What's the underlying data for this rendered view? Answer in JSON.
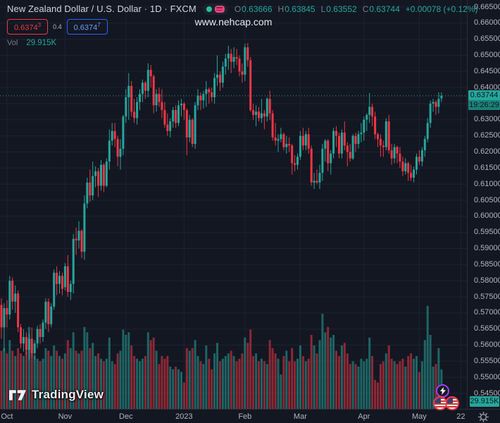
{
  "header": {
    "symbol_title": "New Zealand Dollar / U.S. Dollar · 1D · FXCM",
    "ohlc": {
      "o_label": "O",
      "o": "0.63666",
      "h_label": "H",
      "h": "0.63845",
      "l_label": "L",
      "l": "0.63552",
      "c_label": "C",
      "c": "0.63744",
      "change": "+0.00078 (+0.12%)"
    },
    "quote": {
      "bid": "0.6374",
      "bid_sup": "3",
      "spread": "0.4",
      "ask": "0.6374",
      "ask_sup": "7"
    },
    "vol_label": "Vol",
    "vol_value": "29.915K"
  },
  "watermark": "www.nehcap.com",
  "logo_text": "TradingView",
  "price_axis": {
    "last_price_label": "0.63744",
    "countdown": "19:26:29",
    "volume_label": "29.915K"
  },
  "colors": {
    "background": "#131722",
    "grid": "#1d2231",
    "axis_border": "#2a2e39",
    "axis_text": "#b2b5be",
    "text_primary": "#d1d4dc",
    "text_secondary": "#787b86",
    "up": "#26a69a",
    "down": "#f23645",
    "volume_up": "rgba(38,166,154,0.55)",
    "volume_down": "rgba(242,54,69,0.55)",
    "bid_color": "#f23645",
    "ask_border": "#2962ff",
    "ask_text": "#6b9dff",
    "label_text_dark": "#0c1722",
    "watermark_text": "#e8eaef",
    "status_dot_green": "#2bbd9d",
    "toggle_pink": "#f0457d",
    "bolt_ring": "#a03df0",
    "logo_white": "#eceff4"
  },
  "chart_data": {
    "type": "candlestick",
    "title": "New Zealand Dollar / U.S. Dollar · 1D · FXCM",
    "subtitle_watermark": "www.nehcap.com",
    "ylim": [
      0.545,
      0.665
    ],
    "y_tick_step": 0.005,
    "grid": true,
    "legend_position": "top-left",
    "y_tick_labels": [
      "0.66500",
      "0.66000",
      "0.65500",
      "0.65000",
      "0.64500",
      "0.64000",
      "0.63000",
      "0.62500",
      "0.62000",
      "0.61500",
      "0.61000",
      "0.60500",
      "0.60000",
      "0.59500",
      "0.59000",
      "0.58500",
      "0.58000",
      "0.57500",
      "0.57000",
      "0.56500",
      "0.56000",
      "0.55500",
      "0.55000",
      "0.54500"
    ],
    "x_tick_labels": [
      {
        "label": "Oct",
        "bar_index": 2
      },
      {
        "label": "Nov",
        "bar_index": 23
      },
      {
        "label": "Dec",
        "bar_index": 45
      },
      {
        "label": "2023",
        "bar_index": 66
      },
      {
        "label": "Feb",
        "bar_index": 88
      },
      {
        "label": "Mar",
        "bar_index": 108
      },
      {
        "label": "Apr",
        "bar_index": 131
      },
      {
        "label": "May",
        "bar_index": 151
      },
      {
        "label": "22",
        "bar_index": 166
      }
    ],
    "last_price": 0.63744,
    "countdown": "19:26:29",
    "last_volume_k": 29.915,
    "volume_axis_max_k": 80,
    "volume_unit": "K (thousands of contracts)",
    "candles_ohlcv_note": "daily bars Oct 2022 - May 11 2023, [open, high, low, close, volumeK], values read/estimated from chart",
    "candles_ohlcv": [
      [
        0.5725,
        0.5745,
        0.562,
        0.5655,
        44
      ],
      [
        0.5655,
        0.573,
        0.558,
        0.5715,
        46
      ],
      [
        0.5715,
        0.574,
        0.5655,
        0.5695,
        42
      ],
      [
        0.5695,
        0.5815,
        0.568,
        0.58,
        52
      ],
      [
        0.58,
        0.581,
        0.571,
        0.5735,
        44
      ],
      [
        0.5735,
        0.5785,
        0.57,
        0.576,
        40
      ],
      [
        0.576,
        0.577,
        0.564,
        0.5655,
        46
      ],
      [
        0.5655,
        0.5665,
        0.559,
        0.5605,
        42
      ],
      [
        0.5605,
        0.565,
        0.558,
        0.5625,
        40
      ],
      [
        0.5625,
        0.564,
        0.557,
        0.5585,
        44
      ],
      [
        0.5585,
        0.5635,
        0.5555,
        0.562,
        62
      ],
      [
        0.562,
        0.5655,
        0.556,
        0.5575,
        50
      ],
      [
        0.5575,
        0.5615,
        0.5555,
        0.5605,
        40
      ],
      [
        0.5605,
        0.566,
        0.559,
        0.565,
        38
      ],
      [
        0.565,
        0.5665,
        0.5605,
        0.5625,
        36
      ],
      [
        0.5625,
        0.568,
        0.561,
        0.567,
        38
      ],
      [
        0.567,
        0.5745,
        0.565,
        0.5735,
        46
      ],
      [
        0.5735,
        0.5745,
        0.564,
        0.5665,
        44
      ],
      [
        0.5665,
        0.573,
        0.5655,
        0.572,
        40
      ],
      [
        0.572,
        0.5835,
        0.571,
        0.5825,
        48
      ],
      [
        0.5825,
        0.5845,
        0.5755,
        0.579,
        44
      ],
      [
        0.579,
        0.583,
        0.576,
        0.5815,
        40
      ],
      [
        0.5815,
        0.5825,
        0.5755,
        0.5775,
        38
      ],
      [
        0.578,
        0.5855,
        0.577,
        0.5845,
        42
      ],
      [
        0.5845,
        0.588,
        0.575,
        0.5765,
        52
      ],
      [
        0.5765,
        0.58,
        0.574,
        0.579,
        46
      ],
      [
        0.579,
        0.5945,
        0.576,
        0.593,
        58
      ],
      [
        0.593,
        0.5965,
        0.588,
        0.5925,
        44
      ],
      [
        0.5925,
        0.5985,
        0.59,
        0.5955,
        42
      ],
      [
        0.5955,
        0.596,
        0.587,
        0.589,
        44
      ],
      [
        0.589,
        0.6065,
        0.5865,
        0.604,
        62
      ],
      [
        0.604,
        0.612,
        0.6025,
        0.6105,
        58
      ],
      [
        0.6105,
        0.6145,
        0.6045,
        0.6065,
        46
      ],
      [
        0.6065,
        0.617,
        0.605,
        0.6125,
        50
      ],
      [
        0.6125,
        0.6155,
        0.609,
        0.614,
        40
      ],
      [
        0.614,
        0.615,
        0.606,
        0.6095,
        42
      ],
      [
        0.6095,
        0.6175,
        0.608,
        0.616,
        38
      ],
      [
        0.616,
        0.6165,
        0.6075,
        0.6095,
        36
      ],
      [
        0.6095,
        0.618,
        0.609,
        0.617,
        38
      ],
      [
        0.617,
        0.627,
        0.6145,
        0.6235,
        54
      ],
      [
        0.6235,
        0.629,
        0.622,
        0.6265,
        36
      ],
      [
        0.6265,
        0.629,
        0.6215,
        0.624,
        34
      ],
      [
        0.624,
        0.625,
        0.6155,
        0.6185,
        42
      ],
      [
        0.6185,
        0.624,
        0.6145,
        0.621,
        44
      ],
      [
        0.621,
        0.6315,
        0.619,
        0.631,
        60
      ],
      [
        0.631,
        0.6395,
        0.629,
        0.637,
        56
      ],
      [
        0.637,
        0.6445,
        0.63,
        0.6405,
        58
      ],
      [
        0.6405,
        0.642,
        0.631,
        0.6325,
        48
      ],
      [
        0.6325,
        0.6365,
        0.629,
        0.6305,
        40
      ],
      [
        0.6305,
        0.637,
        0.6285,
        0.6355,
        38
      ],
      [
        0.6355,
        0.6395,
        0.633,
        0.638,
        36
      ],
      [
        0.638,
        0.6425,
        0.6355,
        0.6415,
        38
      ],
      [
        0.6415,
        0.642,
        0.6365,
        0.639,
        40
      ],
      [
        0.639,
        0.6475,
        0.637,
        0.6455,
        58
      ],
      [
        0.6455,
        0.647,
        0.64,
        0.6435,
        52
      ],
      [
        0.6435,
        0.644,
        0.632,
        0.6345,
        54
      ],
      [
        0.6345,
        0.6395,
        0.6325,
        0.638,
        44
      ],
      [
        0.638,
        0.64,
        0.634,
        0.6355,
        34
      ],
      [
        0.6355,
        0.6395,
        0.6305,
        0.633,
        40
      ],
      [
        0.633,
        0.6355,
        0.6275,
        0.6285,
        38
      ],
      [
        0.6285,
        0.632,
        0.625,
        0.6265,
        40
      ],
      [
        0.6265,
        0.6305,
        0.6245,
        0.6295,
        32
      ],
      [
        0.6295,
        0.634,
        0.6275,
        0.633,
        30
      ],
      [
        0.633,
        0.6345,
        0.6275,
        0.629,
        32
      ],
      [
        0.629,
        0.636,
        0.628,
        0.6345,
        30
      ],
      [
        0.6345,
        0.6365,
        0.631,
        0.635,
        28
      ],
      [
        0.635,
        0.6355,
        0.63,
        0.633,
        20
      ],
      [
        0.633,
        0.6335,
        0.619,
        0.6245,
        46
      ],
      [
        0.6245,
        0.6315,
        0.623,
        0.63,
        44
      ],
      [
        0.63,
        0.6305,
        0.6215,
        0.6225,
        46
      ],
      [
        0.6225,
        0.6355,
        0.621,
        0.6345,
        52
      ],
      [
        0.6345,
        0.6395,
        0.633,
        0.6375,
        40
      ],
      [
        0.6375,
        0.6385,
        0.633,
        0.636,
        36
      ],
      [
        0.636,
        0.639,
        0.6335,
        0.638,
        34
      ],
      [
        0.638,
        0.642,
        0.634,
        0.6395,
        48
      ],
      [
        0.6395,
        0.64,
        0.635,
        0.6385,
        38
      ],
      [
        0.6385,
        0.64,
        0.6355,
        0.637,
        30
      ],
      [
        0.637,
        0.6445,
        0.635,
        0.643,
        42
      ],
      [
        0.643,
        0.65,
        0.6405,
        0.644,
        50
      ],
      [
        0.644,
        0.645,
        0.639,
        0.6415,
        36
      ],
      [
        0.6415,
        0.648,
        0.64,
        0.6465,
        38
      ],
      [
        0.6465,
        0.6505,
        0.644,
        0.649,
        40
      ],
      [
        0.649,
        0.653,
        0.6455,
        0.6505,
        42
      ],
      [
        0.6505,
        0.652,
        0.6445,
        0.648,
        44
      ],
      [
        0.648,
        0.6525,
        0.646,
        0.6495,
        40
      ],
      [
        0.6495,
        0.652,
        0.647,
        0.649,
        36
      ],
      [
        0.649,
        0.65,
        0.6435,
        0.645,
        38
      ],
      [
        0.645,
        0.6475,
        0.6415,
        0.644,
        42
      ],
      [
        0.644,
        0.6536,
        0.642,
        0.6525,
        54
      ],
      [
        0.6525,
        0.6538,
        0.6465,
        0.6485,
        50
      ],
      [
        0.6485,
        0.6495,
        0.6325,
        0.633,
        60
      ],
      [
        0.633,
        0.635,
        0.63,
        0.6315,
        40
      ],
      [
        0.6315,
        0.6345,
        0.628,
        0.6325,
        42
      ],
      [
        0.6325,
        0.634,
        0.6295,
        0.6305,
        36
      ],
      [
        0.6305,
        0.6365,
        0.629,
        0.632,
        38
      ],
      [
        0.632,
        0.633,
        0.627,
        0.631,
        36
      ],
      [
        0.631,
        0.637,
        0.6295,
        0.6365,
        34
      ],
      [
        0.6365,
        0.639,
        0.63,
        0.632,
        52
      ],
      [
        0.632,
        0.633,
        0.6235,
        0.6245,
        46
      ],
      [
        0.6245,
        0.629,
        0.622,
        0.6235,
        42
      ],
      [
        0.6235,
        0.6255,
        0.62,
        0.624,
        38
      ],
      [
        0.624,
        0.6275,
        0.623,
        0.6255,
        26
      ],
      [
        0.6255,
        0.626,
        0.6205,
        0.6215,
        40
      ],
      [
        0.6215,
        0.625,
        0.6195,
        0.6225,
        44
      ],
      [
        0.6225,
        0.6245,
        0.62,
        0.622,
        36
      ],
      [
        0.622,
        0.6225,
        0.613,
        0.6165,
        46
      ],
      [
        0.6165,
        0.619,
        0.614,
        0.616,
        36
      ],
      [
        0.616,
        0.6195,
        0.6145,
        0.6185,
        38
      ],
      [
        0.6185,
        0.6265,
        0.6175,
        0.625,
        48
      ],
      [
        0.625,
        0.6275,
        0.6205,
        0.622,
        40
      ],
      [
        0.622,
        0.6265,
        0.6205,
        0.6255,
        36
      ],
      [
        0.6255,
        0.6275,
        0.6195,
        0.621,
        38
      ],
      [
        0.621,
        0.622,
        0.6095,
        0.6105,
        56
      ],
      [
        0.6105,
        0.6135,
        0.6085,
        0.611,
        48
      ],
      [
        0.611,
        0.6145,
        0.61,
        0.6105,
        42
      ],
      [
        0.6105,
        0.616,
        0.6085,
        0.6135,
        52
      ],
      [
        0.6135,
        0.6225,
        0.611,
        0.621,
        72
      ],
      [
        0.621,
        0.624,
        0.617,
        0.6235,
        58
      ],
      [
        0.6235,
        0.624,
        0.614,
        0.6165,
        62
      ],
      [
        0.6165,
        0.6205,
        0.613,
        0.6195,
        54
      ],
      [
        0.6195,
        0.6275,
        0.618,
        0.6265,
        56
      ],
      [
        0.6265,
        0.628,
        0.6215,
        0.625,
        44
      ],
      [
        0.625,
        0.626,
        0.618,
        0.6195,
        40
      ],
      [
        0.6195,
        0.627,
        0.618,
        0.626,
        48
      ],
      [
        0.626,
        0.6295,
        0.6205,
        0.622,
        50
      ],
      [
        0.622,
        0.623,
        0.6155,
        0.62,
        42
      ],
      [
        0.62,
        0.6225,
        0.617,
        0.618,
        34
      ],
      [
        0.618,
        0.6255,
        0.6175,
        0.625,
        36
      ],
      [
        0.625,
        0.626,
        0.62,
        0.6225,
        34
      ],
      [
        0.6225,
        0.6265,
        0.621,
        0.6255,
        32
      ],
      [
        0.6255,
        0.629,
        0.623,
        0.626,
        38
      ],
      [
        0.626,
        0.631,
        0.6235,
        0.63,
        36
      ],
      [
        0.63,
        0.632,
        0.6265,
        0.6315,
        38
      ],
      [
        0.6315,
        0.6383,
        0.629,
        0.634,
        54
      ],
      [
        0.634,
        0.635,
        0.628,
        0.631,
        40
      ],
      [
        0.631,
        0.6325,
        0.624,
        0.6255,
        22
      ],
      [
        0.6255,
        0.626,
        0.6215,
        0.624,
        20
      ],
      [
        0.624,
        0.6255,
        0.6185,
        0.622,
        34
      ],
      [
        0.622,
        0.6235,
        0.6185,
        0.6215,
        36
      ],
      [
        0.6215,
        0.6305,
        0.6205,
        0.6295,
        42
      ],
      [
        0.6295,
        0.6315,
        0.6195,
        0.6205,
        48
      ],
      [
        0.6205,
        0.6225,
        0.616,
        0.618,
        38
      ],
      [
        0.618,
        0.6225,
        0.6165,
        0.6215,
        36
      ],
      [
        0.6215,
        0.622,
        0.6165,
        0.6195,
        34
      ],
      [
        0.6195,
        0.6215,
        0.615,
        0.617,
        36
      ],
      [
        0.617,
        0.6185,
        0.6125,
        0.614,
        38
      ],
      [
        0.614,
        0.618,
        0.613,
        0.6165,
        32
      ],
      [
        0.6165,
        0.617,
        0.611,
        0.6135,
        40
      ],
      [
        0.6135,
        0.616,
        0.611,
        0.612,
        42
      ],
      [
        0.612,
        0.6155,
        0.6105,
        0.6145,
        38
      ],
      [
        0.6145,
        0.6195,
        0.613,
        0.6185,
        40
      ],
      [
        0.6185,
        0.6205,
        0.616,
        0.617,
        28
      ],
      [
        0.617,
        0.6215,
        0.6155,
        0.6205,
        36
      ],
      [
        0.6205,
        0.625,
        0.6185,
        0.624,
        52
      ],
      [
        0.624,
        0.6305,
        0.623,
        0.629,
        78
      ],
      [
        0.629,
        0.636,
        0.6275,
        0.635,
        56
      ],
      [
        0.635,
        0.6365,
        0.6325,
        0.6355,
        32
      ],
      [
        0.6355,
        0.636,
        0.6315,
        0.634,
        34
      ],
      [
        0.634,
        0.6385,
        0.632,
        0.6365,
        46
      ],
      [
        0.63666,
        0.63845,
        0.63552,
        0.63744,
        29.915
      ]
    ]
  }
}
